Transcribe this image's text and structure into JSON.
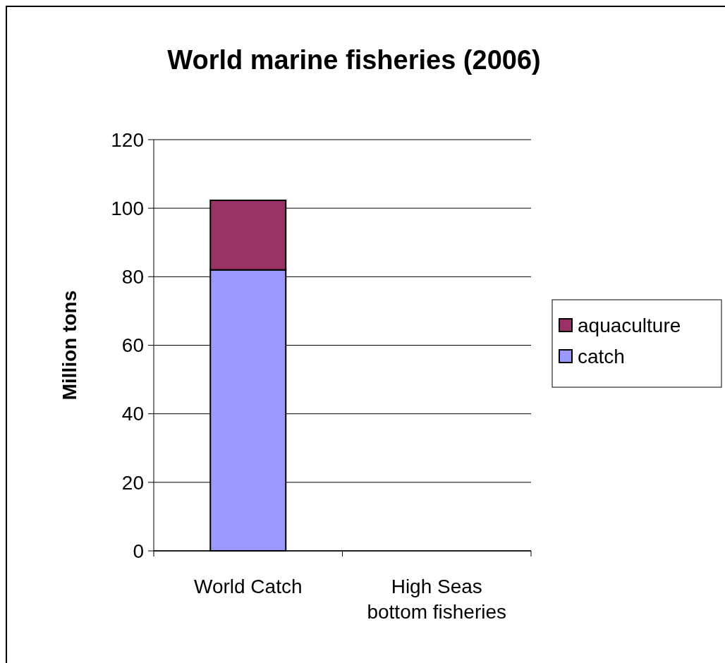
{
  "chart_data": {
    "type": "bar",
    "title": "World marine fisheries (2006)",
    "ylabel": "Million tons",
    "categories": [
      "World Catch",
      "High Seas bottom fisheries"
    ],
    "stacked": true,
    "series": [
      {
        "name": "catch",
        "color": "#9999ff",
        "values": [
          82,
          null
        ]
      },
      {
        "name": "aquaculture",
        "color": "#993366",
        "values": [
          20.3,
          null
        ]
      }
    ],
    "ylim": [
      0,
      120
    ],
    "yticks": [
      0,
      20,
      40,
      60,
      80,
      100,
      120
    ],
    "grid": "y",
    "legend": "right"
  }
}
